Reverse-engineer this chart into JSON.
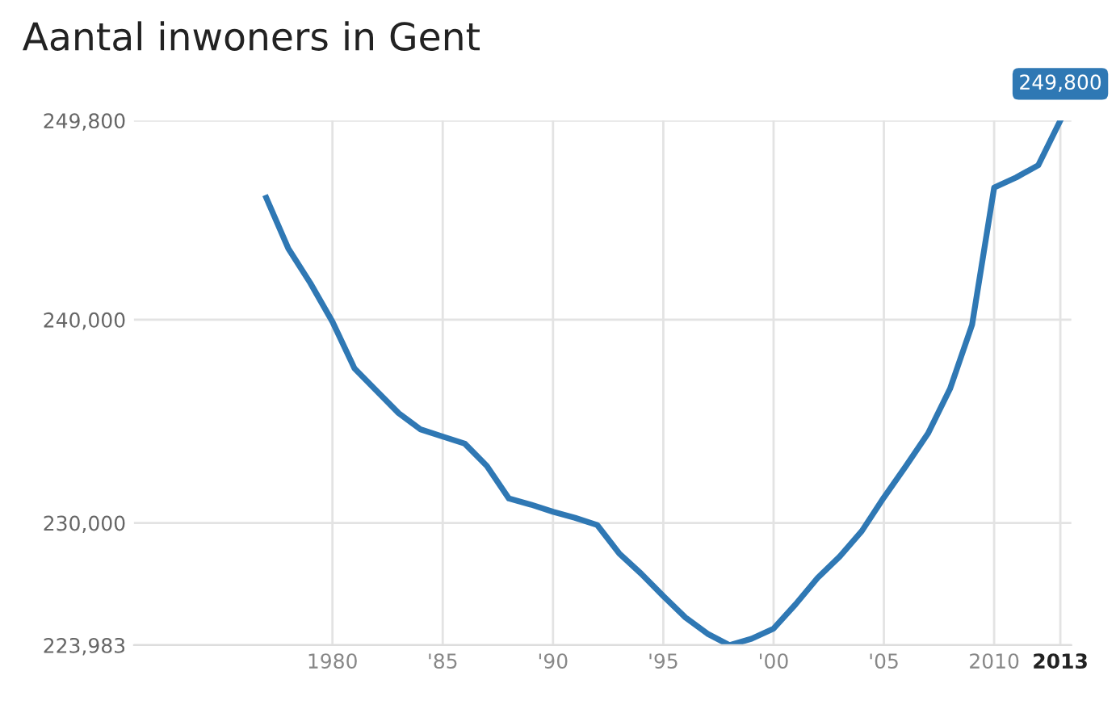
{
  "chart_data": {
    "type": "line",
    "title": "Aantal inwoners in Gent",
    "x": [
      1977,
      1978,
      1979,
      1980,
      1981,
      1982,
      1983,
      1984,
      1985,
      1986,
      1987,
      1988,
      1989,
      1990,
      1991,
      1992,
      1993,
      1994,
      1995,
      1996,
      1997,
      1998,
      1999,
      2000,
      2001,
      2002,
      2003,
      2004,
      2005,
      2006,
      2007,
      2008,
      2009,
      2010,
      2011,
      2012,
      2013
    ],
    "series": [
      {
        "color": "#2f78b4",
        "values": [
          246000,
          243500,
          241800,
          239900,
          237600,
          236500,
          235400,
          234600,
          234250,
          233900,
          232800,
          231200,
          230900,
          230550,
          230250,
          229900,
          228500,
          227500,
          226400,
          225350,
          224550,
          223983,
          224300,
          224800,
          226000,
          227300,
          228350,
          229600,
          231250,
          232800,
          234400,
          236600,
          239750,
          246500,
          247000,
          247600,
          249800
        ]
      }
    ],
    "annotations": [
      {
        "text": "249,800",
        "x": 2013,
        "y": 249800
      }
    ],
    "xlim": [
      1971,
      2013.5
    ],
    "ylim": [
      223983,
      249800
    ],
    "xticks": [
      {
        "value": 1980,
        "label": "1980"
      },
      {
        "value": 1985,
        "label": "'85"
      },
      {
        "value": 1990,
        "label": "'90"
      },
      {
        "value": 1995,
        "label": "'95"
      },
      {
        "value": 2000,
        "label": "'00"
      },
      {
        "value": 2005,
        "label": "'05"
      },
      {
        "value": 2010,
        "label": "2010"
      },
      {
        "value": 2013,
        "label": "2013"
      }
    ],
    "yticks": [
      {
        "value": 223983,
        "label": "223,983"
      },
      {
        "value": 230000,
        "label": "230,000"
      },
      {
        "value": 240000,
        "label": "240,000"
      },
      {
        "value": 249800,
        "label": "249,800"
      }
    ],
    "grid": true,
    "legend": false,
    "marker": "none",
    "line_style": "solid"
  }
}
